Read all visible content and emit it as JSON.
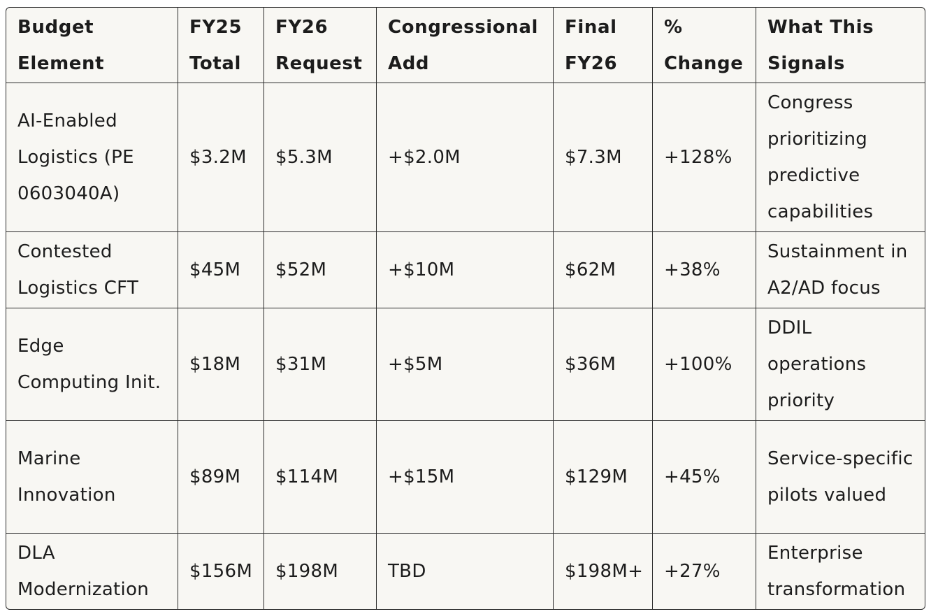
{
  "table": {
    "headers": [
      "Budget Element",
      "FY25 Total",
      "FY26 Request",
      "Congressional Add",
      "Final FY26",
      "% Change",
      "What This Signals"
    ],
    "rows": [
      [
        "AI-Enabled Logistics (PE 0603040A)",
        "$3.2M",
        "$5.3M",
        "+$2.0M",
        "$7.3M",
        "+128%",
        "Congress prioritizing predictive capabilities"
      ],
      [
        "Contested Logistics CFT",
        "$45M",
        "$52M",
        "+$10M",
        "$62M",
        "+38%",
        "Sustainment in A2/AD focus"
      ],
      [
        "Edge Computing Init.",
        "$18M",
        "$31M",
        "+$5M",
        "$36M",
        "+100%",
        "DDIL operations priority"
      ],
      [
        "Marine Innovation",
        "$89M",
        "$114M",
        "+$15M",
        "$129M",
        "+45%",
        "Service-specific pilots valued"
      ],
      [
        "DLA Modernization",
        "$156M",
        "$198M",
        "TBD",
        "$198M+",
        "+27%",
        "Enterprise transformation"
      ]
    ]
  }
}
